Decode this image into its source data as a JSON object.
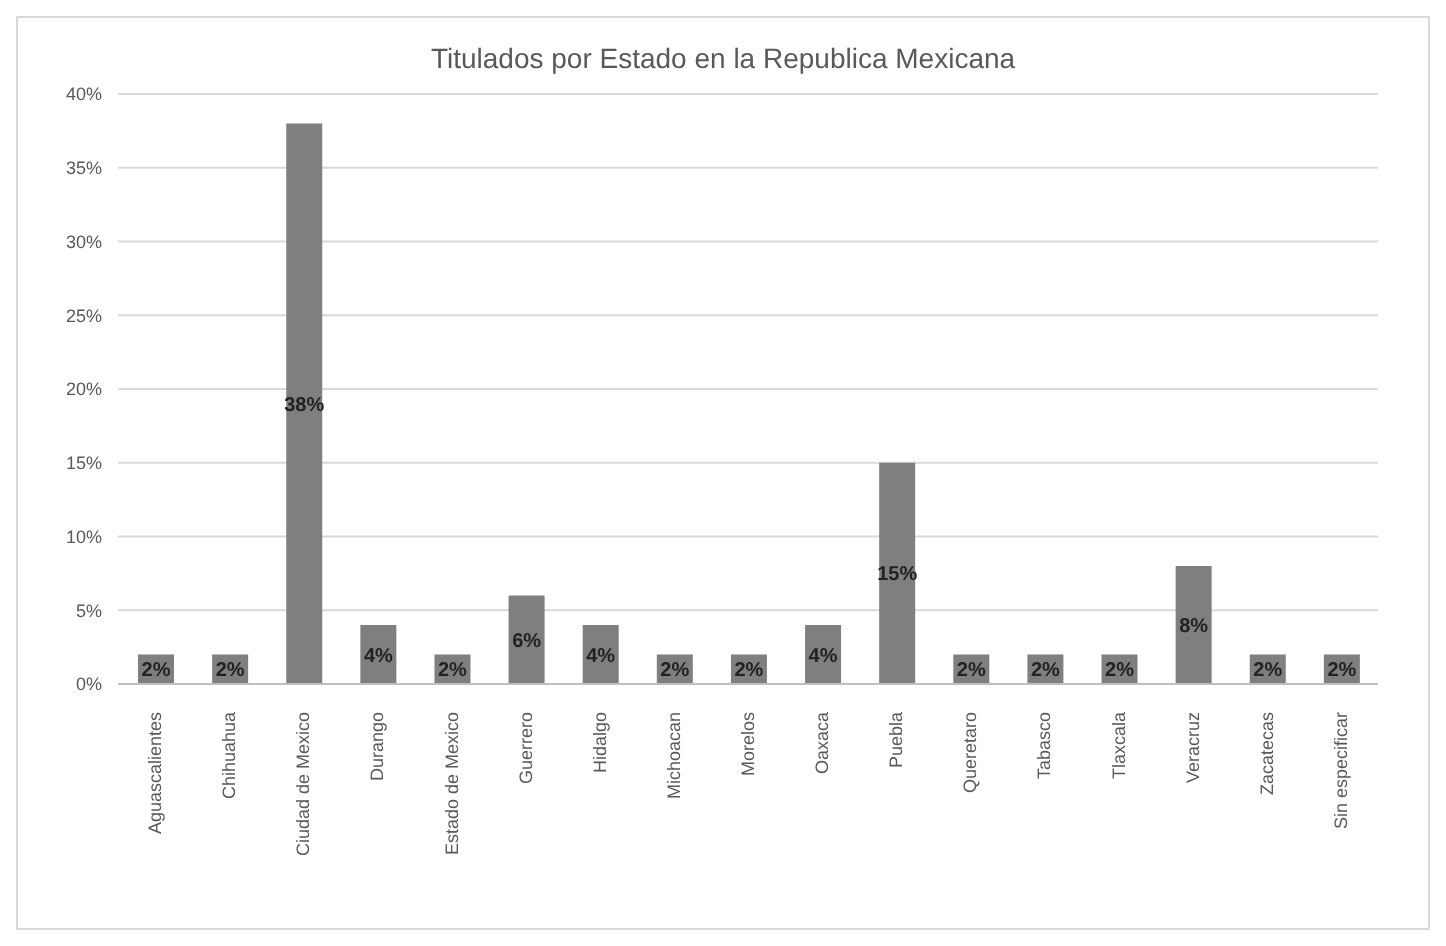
{
  "chart_data": {
    "type": "bar",
    "title": "Titulados por Estado en la Republica Mexicana",
    "categories": [
      "Aguascalientes",
      "Chihuahua",
      "Ciudad de Mexico",
      "Durango",
      "Estado de Mexico",
      "Guerrero",
      "Hidalgo",
      "Michoacan",
      "Morelos",
      "Oaxaca",
      "Puebla",
      "Queretaro",
      "Tabasco",
      "Tlaxcala",
      "Veracruz",
      "Zacatecas",
      "Sin especificar"
    ],
    "values": [
      2,
      2,
      38,
      4,
      2,
      6,
      4,
      2,
      2,
      4,
      15,
      2,
      2,
      2,
      8,
      2,
      2
    ],
    "value_labels": [
      "2%",
      "2%",
      "38%",
      "4%",
      "2%",
      "6%",
      "4%",
      "2%",
      "2%",
      "4%",
      "15%",
      "2%",
      "2%",
      "2%",
      "8%",
      "2%",
      "2%"
    ],
    "color": "#7f7f7f",
    "ylim": [
      0,
      40
    ],
    "yticks": [
      {
        "value": 0,
        "label": "0%"
      },
      {
        "value": 5,
        "label": "5%"
      },
      {
        "value": 10,
        "label": "10%"
      },
      {
        "value": 15,
        "label": "15%"
      },
      {
        "value": 20,
        "label": "20%"
      },
      {
        "value": 25,
        "label": "25%"
      },
      {
        "value": 30,
        "label": "30%"
      },
      {
        "value": 35,
        "label": "35%"
      },
      {
        "value": 40,
        "label": "40%"
      }
    ],
    "grid": "y"
  }
}
